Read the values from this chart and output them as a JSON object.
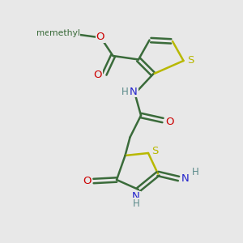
{
  "background_color": "#e8e8e8",
  "bond_color": "#3a6b3a",
  "sulfur_color": "#b8b800",
  "nitrogen_color": "#2222cc",
  "oxygen_color": "#cc0000",
  "h_color": "#5a8a8a",
  "figsize": [
    3.0,
    3.0
  ],
  "dpi": 100,
  "xlim": [
    0,
    10
  ],
  "ylim": [
    0,
    10
  ]
}
